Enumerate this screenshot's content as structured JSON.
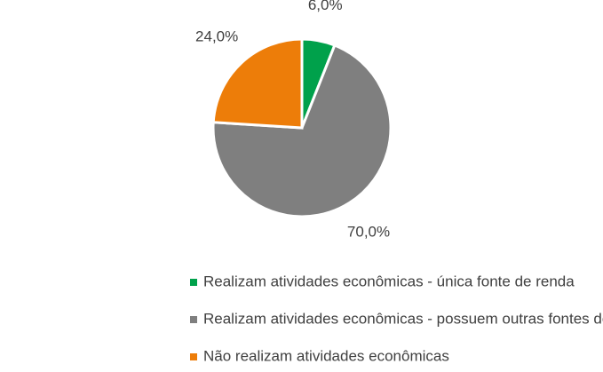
{
  "chart_data": {
    "type": "pie",
    "categories": [
      "Realizam atividades econômicas - única fonte de renda",
      "Realizam atividades econômicas - possuem outras fontes de renda",
      "Não realizam atividades econômicas"
    ],
    "values": [
      6,
      70,
      24
    ],
    "value_labels": [
      "6,0%",
      "70,0%",
      "24,0%"
    ],
    "colors": [
      "#00a14b",
      "#7f7f7f",
      "#ed7d09"
    ],
    "legend": "bottom"
  }
}
